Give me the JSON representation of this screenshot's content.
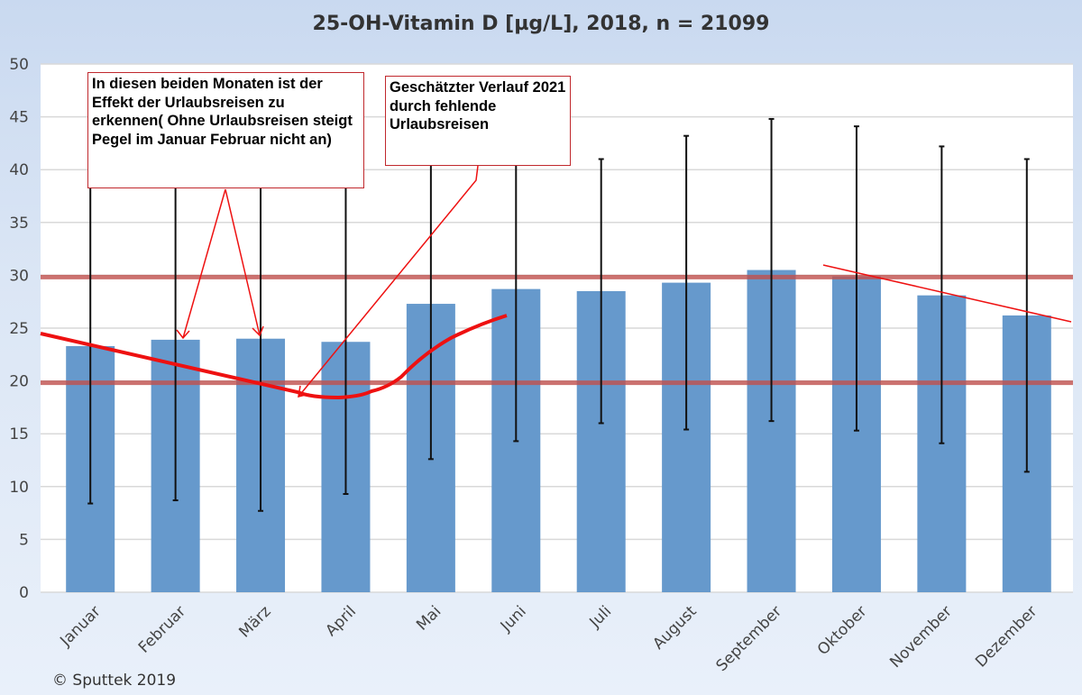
{
  "chart_data": {
    "type": "bar",
    "title": "25-OH-Vitamin D [µg/L], 2018, n = 21099",
    "categories": [
      "Januar",
      "Februar",
      "März",
      "April",
      "Mai",
      "Juni",
      "Juli",
      "August",
      "September",
      "Oktober",
      "November",
      "Dezember"
    ],
    "values": [
      23.3,
      23.9,
      24.0,
      23.7,
      27.3,
      28.7,
      28.5,
      29.3,
      30.5,
      29.9,
      28.1,
      26.2
    ],
    "error_low": [
      8.4,
      8.7,
      7.7,
      9.3,
      12.6,
      14.3,
      16.0,
      15.4,
      16.2,
      15.3,
      14.1,
      11.4
    ],
    "error_high": [
      39,
      39,
      39,
      39,
      41,
      41,
      41.0,
      43.2,
      44.8,
      44.1,
      42.2,
      41.0
    ],
    "ylim": [
      0,
      50
    ],
    "yticks": [
      0,
      5,
      10,
      15,
      20,
      25,
      30,
      35,
      40,
      45,
      50
    ],
    "grid": true,
    "bar_color": "#6699cc",
    "reference_lines": [
      20,
      30
    ],
    "reference_color": "#c0504d",
    "annotations": [
      {
        "text": "In diesen beiden Monaten ist der Effekt der Urlaubsreisen zu erkennen( Ohne Urlaubsreisen steigt Pegel im Januar Februar nicht an)"
      },
      {
        "text": "Geschätzter Verlauf 2021 durch fehlende Urlaubsreisen"
      }
    ],
    "estimated_curve_color": "#ee1111"
  },
  "copyright": "© Sputtek 2019"
}
